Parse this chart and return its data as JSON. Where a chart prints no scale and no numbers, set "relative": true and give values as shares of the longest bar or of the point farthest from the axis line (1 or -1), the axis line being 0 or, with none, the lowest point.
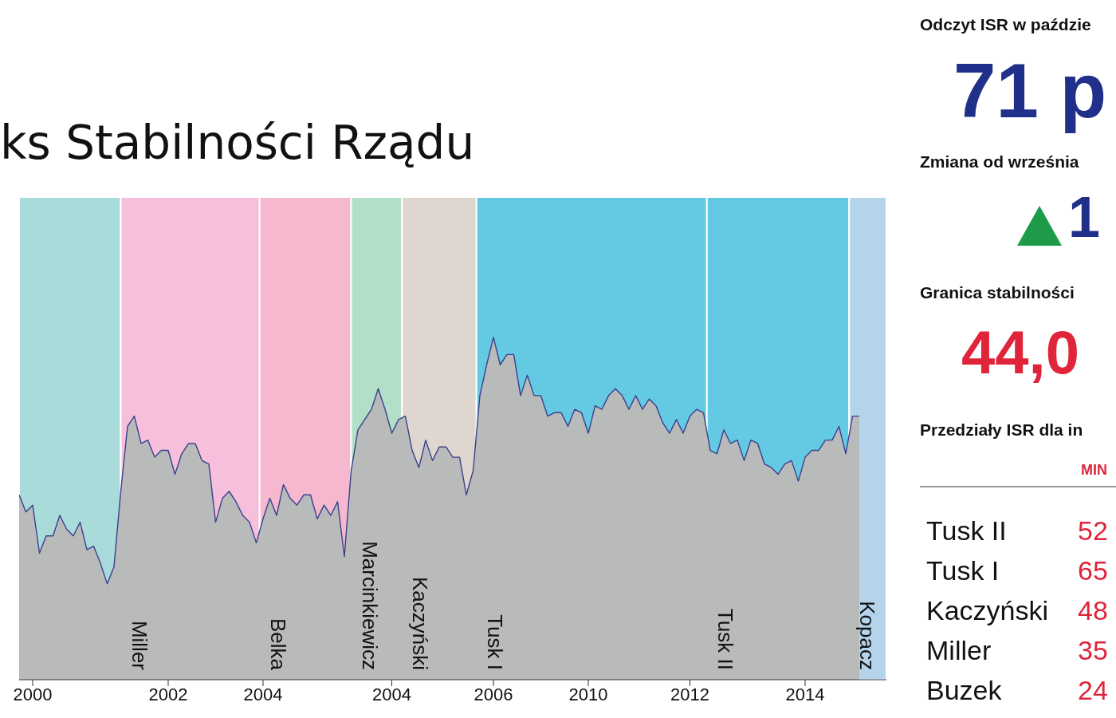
{
  "chart_data": [
    {
      "type": "area",
      "title": "ks Stabilności Rządu",
      "relative": true,
      "categories": [
        null,
        null,
        "2000",
        null,
        null,
        null,
        null,
        null,
        null,
        null,
        null,
        null,
        null,
        null,
        null,
        null,
        null,
        null,
        null,
        null,
        null,
        null,
        "2002",
        null,
        null,
        null,
        null,
        null,
        null,
        null,
        null,
        null,
        null,
        null,
        null,
        null,
        "2004",
        null,
        null,
        null,
        null,
        null,
        null,
        null,
        null,
        null,
        null,
        null,
        null,
        null,
        null,
        null,
        null,
        null,
        null,
        "2004",
        null,
        null,
        null,
        null,
        null,
        null,
        null,
        null,
        null,
        null,
        null,
        null,
        null,
        null,
        "2006",
        null,
        null,
        null,
        null,
        null,
        null,
        null,
        null,
        null,
        null,
        null,
        null,
        null,
        "2010",
        null,
        null,
        null,
        null,
        null,
        null,
        null,
        null,
        null,
        null,
        null,
        null,
        null,
        null,
        "2012",
        null,
        null,
        null,
        null,
        null,
        null,
        null,
        null,
        null,
        null,
        null,
        null,
        null,
        null,
        null,
        null,
        "2014",
        null,
        null,
        null,
        null,
        null,
        null,
        null,
        null
      ],
      "series": [
        {
          "color": "#b9bbbb",
          "values": [
            0.54,
            0.49,
            0.51,
            0.37,
            0.42,
            0.42,
            0.48,
            0.44,
            0.42,
            0.46,
            0.38,
            0.39,
            0.34,
            0.28,
            0.33,
            0.55,
            0.74,
            0.77,
            0.69,
            0.7,
            0.65,
            0.67,
            0.67,
            0.6,
            0.66,
            0.69,
            0.69,
            0.64,
            0.63,
            0.46,
            0.53,
            0.55,
            0.52,
            0.48,
            0.46,
            0.4,
            0.47,
            0.53,
            0.48,
            0.57,
            0.53,
            0.51,
            0.54,
            0.54,
            0.47,
            0.51,
            0.48,
            0.52,
            0.36,
            0.61,
            0.73,
            0.76,
            0.79,
            0.85,
            0.79,
            0.72,
            0.76,
            0.77,
            0.67,
            0.62,
            0.7,
            0.64,
            0.68,
            0.68,
            0.65,
            0.65,
            0.54,
            0.61,
            0.83,
            0.92,
            1.0,
            0.92,
            0.95,
            0.95,
            0.83,
            0.89,
            0.83,
            0.83,
            0.77,
            0.78,
            0.78,
            0.74,
            0.79,
            0.78,
            0.72,
            0.8,
            0.79,
            0.83,
            0.85,
            0.83,
            0.79,
            0.83,
            0.79,
            0.82,
            0.8,
            0.75,
            0.72,
            0.76,
            0.72,
            0.77,
            0.79,
            0.78,
            0.67,
            0.66,
            0.73,
            0.69,
            0.7,
            0.64,
            0.7,
            0.69,
            0.63,
            0.62,
            0.6,
            0.63,
            0.64,
            0.58,
            0.65,
            0.67,
            0.67,
            0.7,
            0.7,
            0.74,
            0.66,
            0.77,
            0.77
          ]
        }
      ],
      "annotations": [
        "Miller",
        "Belka",
        "Marcinkiewicz",
        "Kaczyński",
        "Tusk I",
        "Tusk II",
        "Kopacz"
      ]
    },
    {
      "type": "other",
      "annotations": [
        "Odczyt ISR w paździe",
        "71 p",
        "Zmiana od września",
        "1",
        "Granica stabilności",
        "44,0",
        "Przedziały ISR dla in",
        "MIN",
        "Tusk II",
        "52",
        "Tusk I",
        "65",
        "Kaczyński",
        "48",
        "Miller",
        "35",
        "Buzek",
        "24"
      ]
    }
  ]
}
